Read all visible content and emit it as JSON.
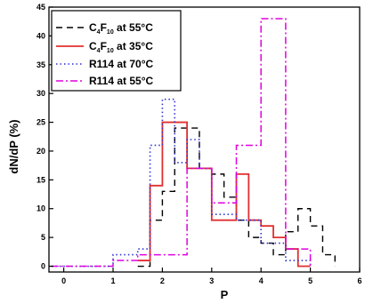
{
  "chart_data": {
    "type": "step",
    "xlabel": "P",
    "ylabel": "dN/dP (%)",
    "xlim": [
      -0.3,
      6.0
    ],
    "ylim": [
      -1,
      45
    ],
    "x_ticks": [
      0,
      1,
      2,
      3,
      4,
      5,
      6
    ],
    "y_ticks": [
      0,
      5,
      10,
      15,
      20,
      25,
      30,
      35,
      40,
      45
    ],
    "x_tick_labels": [
      "0",
      "1",
      "2",
      "3",
      "4",
      "5",
      "6"
    ],
    "y_tick_labels": [
      "0",
      "5",
      "10",
      "15",
      "20",
      "25",
      "30",
      "35",
      "40",
      "45"
    ],
    "legend_position": "top-left",
    "series": [
      {
        "name_main": "C",
        "name_sub": "4",
        "name_mid": "F",
        "name_sub2": "10",
        "name_tail": " at 55°C",
        "color": "#000000",
        "dash": "7,5",
        "width": 1.4,
        "edges": [
          1.5,
          1.75,
          2.0,
          2.25,
          2.5,
          2.75,
          3.0,
          3.25,
          3.5,
          3.75,
          4.0,
          4.25,
          4.5,
          4.75,
          5.0,
          5.25,
          5.5
        ],
        "values": [
          0,
          8,
          13,
          24,
          24,
          17,
          16,
          12,
          8,
          5,
          4,
          2,
          6,
          10,
          7,
          2
        ]
      },
      {
        "name_main": "C",
        "name_sub": "4",
        "name_mid": "F",
        "name_sub2": "10",
        "name_tail": " at 35°C",
        "color": "#e03030",
        "dash": "",
        "width": 1.8,
        "edges": [
          1.5,
          1.75,
          2.0,
          2.25,
          2.5,
          2.75,
          3.0,
          3.25,
          3.5,
          3.75,
          4.0,
          4.25,
          4.5,
          4.75,
          5.0
        ],
        "values": [
          1,
          14,
          25,
          25,
          17,
          17,
          8,
          8,
          16,
          8,
          7,
          5,
          3,
          0
        ]
      },
      {
        "name": "R114 at 70°C",
        "color": "#3030d0",
        "dash": "1.5,3",
        "width": 1.6,
        "edges": [
          -0.25,
          1.0,
          1.5,
          1.75,
          2.0,
          2.25,
          2.5,
          2.75,
          3.0,
          3.5,
          4.0,
          4.5,
          5.0
        ],
        "values": [
          0,
          2,
          3,
          21,
          29,
          18,
          22,
          17,
          9,
          8,
          4,
          1
        ],
        "tail_to": 5.0
      },
      {
        "name": "R114 at 55°C",
        "color": "#e000e0",
        "dash": "8,3,2,3",
        "width": 1.5,
        "edges": [
          -0.25,
          1.0,
          1.5,
          2.0,
          2.5,
          3.0,
          3.5,
          4.0,
          4.5,
          5.0
        ],
        "values": [
          0,
          1,
          2,
          2,
          17,
          11,
          21,
          43,
          3
        ]
      }
    ]
  }
}
